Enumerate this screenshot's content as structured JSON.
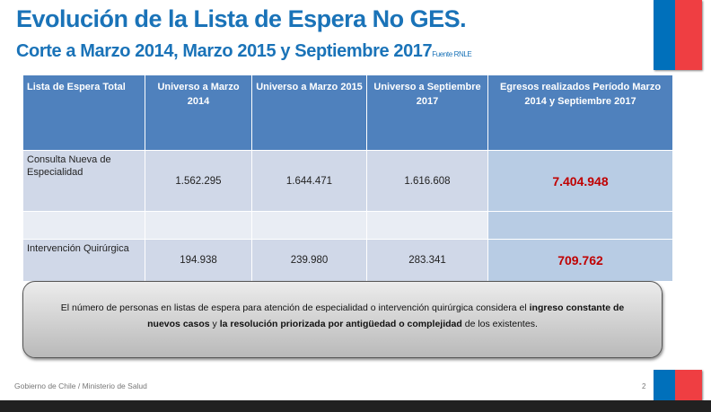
{
  "title": "Evolución de la Lista de Espera No GES.",
  "subtitle": "Corte a Marzo 2014, Marzo 2015 y Septiembre 2017",
  "source": "Fuente RNLE",
  "table": {
    "headers": [
      "Lista de Espera Total",
      "Universo a Marzo 2014",
      "Universo a Marzo 2015",
      "Universo a Septiembre 2017",
      "Egresos realizados Período Marzo 2014 y Septiembre 2017"
    ],
    "rows": [
      {
        "label": "Consulta Nueva de Especialidad",
        "values": [
          "1.562.295",
          "1.644.471",
          "1.616.608"
        ],
        "egresos": "7.404.948"
      },
      {
        "label": "Intervención Quirúrgica",
        "values": [
          "194.938",
          "239.980",
          "283.341"
        ],
        "egresos": "709.762"
      }
    ]
  },
  "callout": {
    "t1": "El número de personas en listas de espera para atención de especialidad o intervención quirúrgica considera el ",
    "b1": "ingreso constante de nuevos casos",
    "t2": " y ",
    "b2": "la resolución priorizada por antigüedad o complejidad",
    "t3": " de los existentes."
  },
  "footer": "Gobierno de Chile / Ministerio de Salud",
  "page_number": "2",
  "colors": {
    "title": "#1a73b8",
    "header": "#4f81bd",
    "flag_blue": "#0070bb",
    "flag_red": "#ef3e42",
    "highlight": "#c00000"
  }
}
